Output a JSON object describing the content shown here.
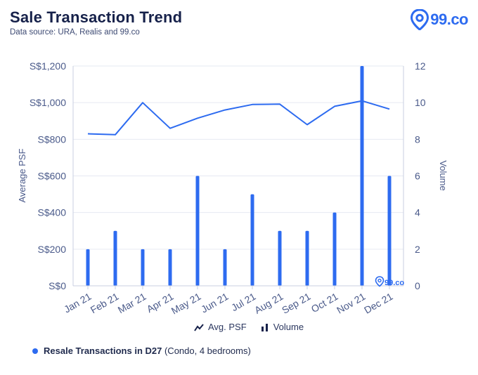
{
  "header": {
    "title": "Sale Transaction  Trend",
    "subtitle": "Data source: URA, Realis and 99.co",
    "brand": "99.co"
  },
  "colors": {
    "accent": "#2d6bf0",
    "text_dark": "#16214a",
    "axis": "#4a5a8a",
    "grid": "#e6e9f2"
  },
  "chart_data": {
    "type": "bar+line",
    "categories": [
      "Jan 21",
      "Feb 21",
      "Mar 21",
      "Apr 21",
      "May 21",
      "Jun 21",
      "Jul 21",
      "Aug 21",
      "Sep 21",
      "Oct 21",
      "Nov 21",
      "Dec 21"
    ],
    "series": [
      {
        "name": "Avg. PSF",
        "type": "line",
        "axis": "left",
        "values": [
          830,
          825,
          1000,
          860,
          915,
          960,
          990,
          992,
          880,
          980,
          1010,
          965
        ]
      },
      {
        "name": "Volume",
        "type": "bar",
        "axis": "right",
        "values": [
          2,
          3,
          2,
          2,
          6,
          2,
          5,
          3,
          3,
          4,
          12,
          6
        ]
      }
    ],
    "ylabel_left": "Average PSF",
    "ylabel_right": "Volume",
    "ylim_left": [
      0,
      1200
    ],
    "ylim_right": [
      0,
      12
    ],
    "yticks_left": [
      "S$0",
      "S$200",
      "S$400",
      "S$600",
      "S$800",
      "S$1,000",
      "S$1,200"
    ],
    "yticks_right": [
      "0",
      "2",
      "4",
      "6",
      "8",
      "10",
      "12"
    ],
    "watermark": "99.co",
    "legend_position": "bottom-center"
  },
  "legend": {
    "psf_label": "Avg. PSF",
    "volume_label": "Volume"
  },
  "footnote": {
    "bold": "Resale Transactions in D27",
    "rest": " (Condo, 4 bedrooms)"
  }
}
